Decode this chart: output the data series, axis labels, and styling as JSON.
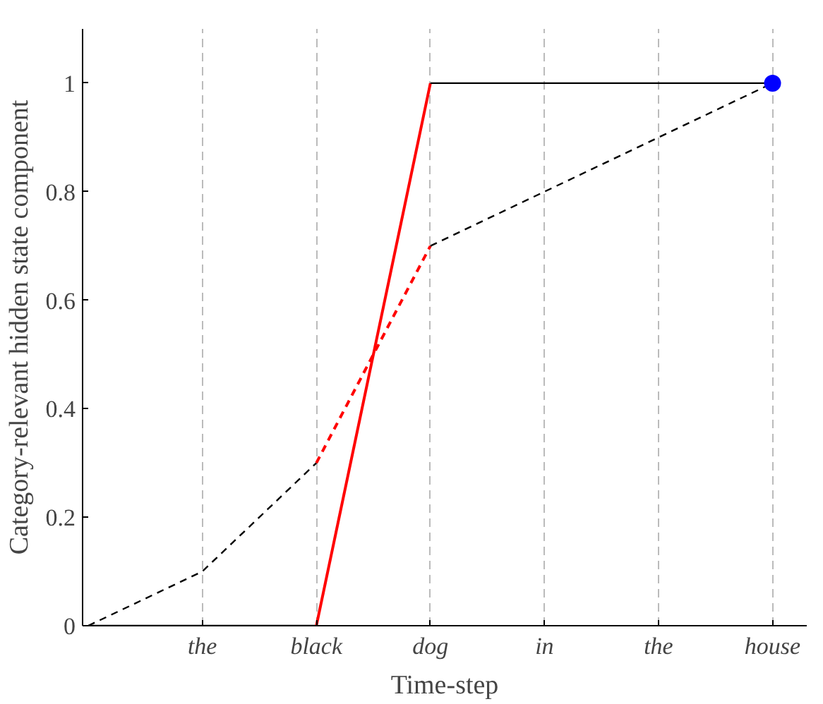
{
  "chart_data": {
    "type": "line",
    "xlabel": "Time-step",
    "ylabel": "Category-relevant hidden state component",
    "categories": [
      null,
      "the",
      "black",
      "dog",
      "in",
      "the",
      "house"
    ],
    "series": [
      {
        "color": "#000000",
        "line_style": "solid",
        "values": [
          0,
          0,
          0,
          null,
          null,
          null,
          null
        ]
      },
      {
        "color": "#ff0000",
        "line_style": "solid",
        "values": [
          null,
          null,
          0,
          1,
          null,
          null,
          null
        ]
      },
      {
        "color": "#000000",
        "line_style": "solid",
        "values": [
          null,
          null,
          null,
          1,
          1,
          1,
          1
        ]
      },
      {
        "color": "#000000",
        "line_style": "dashed",
        "values": [
          0,
          0.1,
          0.3,
          null,
          null,
          null,
          null
        ]
      },
      {
        "color": "#ff0000",
        "line_style": "dashed",
        "values": [
          null,
          null,
          0.3,
          0.7,
          null,
          null,
          null
        ]
      },
      {
        "color": "#000000",
        "line_style": "dashed",
        "values": [
          null,
          null,
          null,
          0.7,
          0.8,
          0.9,
          1.0
        ]
      },
      {
        "type": "scatter",
        "color": "#0000ff",
        "marker": "circle",
        "values": [
          null,
          null,
          null,
          null,
          null,
          null,
          1
        ]
      }
    ],
    "ylim": [
      0,
      1.1
    ],
    "yticks": [
      0,
      0.2,
      0.4,
      0.6,
      0.8,
      1
    ],
    "grid": "x"
  }
}
